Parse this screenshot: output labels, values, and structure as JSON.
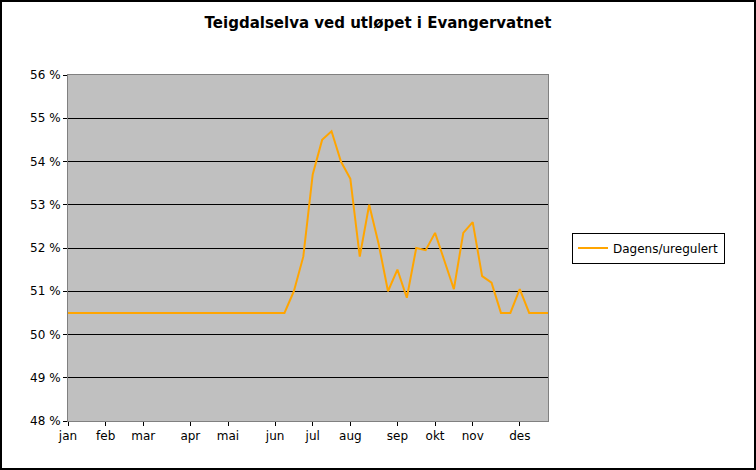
{
  "chart_data": {
    "type": "line",
    "title": "Teigdalselva ved utløpet i Evangervatnet",
    "categories": [
      "jan",
      null,
      null,
      null,
      "feb",
      null,
      null,
      null,
      "mar",
      null,
      null,
      null,
      null,
      "apr",
      null,
      null,
      null,
      "mai",
      null,
      null,
      null,
      null,
      "jun",
      null,
      null,
      null,
      "jul",
      null,
      null,
      null,
      "aug",
      null,
      null,
      null,
      null,
      "sep",
      null,
      null,
      null,
      "okt",
      null,
      null,
      null,
      "nov",
      null,
      null,
      null,
      null,
      "des",
      null,
      null,
      null
    ],
    "series": [
      {
        "name": "Dagens/uregulert",
        "color": "#ffa500",
        "values": [
          50.5,
          50.5,
          50.5,
          50.5,
          50.5,
          50.5,
          50.5,
          50.5,
          50.5,
          50.5,
          50.5,
          50.5,
          50.5,
          50.5,
          50.5,
          50.5,
          50.5,
          50.5,
          50.5,
          50.5,
          50.5,
          50.5,
          50.5,
          50.5,
          51.0,
          51.8,
          53.7,
          54.5,
          54.7,
          54.0,
          53.6,
          51.8,
          53.0,
          52.1,
          51.0,
          51.5,
          50.85,
          52.0,
          51.95,
          52.35,
          51.7,
          51.05,
          52.35,
          52.6,
          51.35,
          51.2,
          50.5,
          50.5,
          51.05,
          50.5,
          50.5,
          50.5
        ]
      }
    ],
    "ylim": [
      48,
      56
    ],
    "yticks": [
      {
        "value": 48,
        "label": "48 %"
      },
      {
        "value": 49,
        "label": "49 %"
      },
      {
        "value": 50,
        "label": "50 %"
      },
      {
        "value": 51,
        "label": "51 %"
      },
      {
        "value": 52,
        "label": "52 %"
      },
      {
        "value": 53,
        "label": "53 %"
      },
      {
        "value": 54,
        "label": "54 %"
      },
      {
        "value": 55,
        "label": "55 %"
      },
      {
        "value": 56,
        "label": "56 %"
      }
    ],
    "grid": true,
    "legend": "right"
  }
}
